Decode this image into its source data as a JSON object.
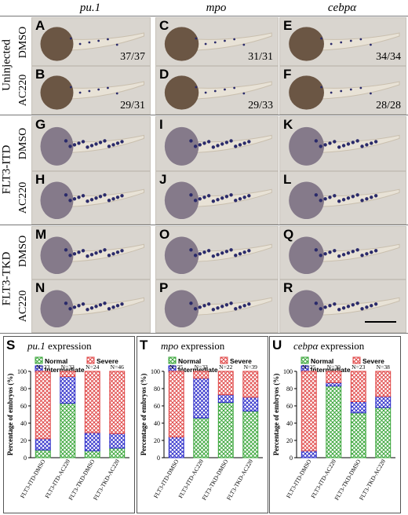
{
  "columns": [
    "pu.1",
    "mpo",
    "cebpα"
  ],
  "groups": [
    {
      "name": "Uninjected",
      "rows": [
        "DMSO",
        "AC220"
      ]
    },
    {
      "name": "FLT3-ITD",
      "rows": [
        "DMSO",
        "AC220"
      ]
    },
    {
      "name": "FLT3-TKD",
      "rows": [
        "DMSO",
        "AC220"
      ]
    }
  ],
  "panels": [
    {
      "letter": "A",
      "count": "37/37"
    },
    {
      "letter": "C",
      "count": "31/31"
    },
    {
      "letter": "E",
      "count": "34/34"
    },
    {
      "letter": "B",
      "count": "29/31"
    },
    {
      "letter": "D",
      "count": "29/33"
    },
    {
      "letter": "F",
      "count": "28/28"
    },
    {
      "letter": "G",
      "count": ""
    },
    {
      "letter": "I",
      "count": ""
    },
    {
      "letter": "K",
      "count": ""
    },
    {
      "letter": "H",
      "count": ""
    },
    {
      "letter": "J",
      "count": ""
    },
    {
      "letter": "L",
      "count": ""
    },
    {
      "letter": "M",
      "count": ""
    },
    {
      "letter": "O",
      "count": ""
    },
    {
      "letter": "Q",
      "count": ""
    },
    {
      "letter": "N",
      "count": ""
    },
    {
      "letter": "P",
      "count": ""
    },
    {
      "letter": "R",
      "count": ""
    }
  ],
  "colors": {
    "normal": "#3aa63a",
    "intermediate": "#2a2ac8",
    "severe": "#e04848"
  },
  "chart_data": [
    {
      "type": "bar",
      "letter": "S",
      "title_gene": "pu.1",
      "title_rest": " expression",
      "ylabel": "Percentage of embryos (%)",
      "ylim": [
        0,
        100
      ],
      "yticks": [
        "0",
        "20",
        "40",
        "60",
        "80",
        "100"
      ],
      "legend": [
        "Normal",
        "Severe",
        "Intermediate"
      ],
      "categories": [
        "FLT3-ITD-DMSO",
        "FLT3-ITD-AC220",
        "FLT3-TKD-DMSO",
        "FLT3-TKD-AC220"
      ],
      "n_labels": [
        "N=23",
        "N=32",
        "N=24",
        "N=46"
      ],
      "series": [
        {
          "name": "Normal",
          "values": [
            9,
            63,
            8,
            11
          ]
        },
        {
          "name": "Intermediate",
          "values": [
            13,
            31,
            21,
            17
          ]
        },
        {
          "name": "Severe",
          "values": [
            78,
            6,
            71,
            72
          ]
        }
      ]
    },
    {
      "type": "bar",
      "letter": "T",
      "title_gene": "mpo",
      "title_rest": " expression",
      "ylabel": "Percentage of embryos (%)",
      "ylim": [
        0,
        100
      ],
      "yticks": [
        "0",
        "20",
        "40",
        "60",
        "80",
        "100"
      ],
      "legend": [
        "Normal",
        "Severe",
        "Intermediate"
      ],
      "categories": [
        "FLT3-ITD-DMSO",
        "FLT3-ITD-AC220",
        "FLT3-TKD-DMSO",
        "FLT3-TKD-AC220"
      ],
      "n_labels": [
        "N=25",
        "N=33",
        "N=22",
        "N=39"
      ],
      "series": [
        {
          "name": "Normal",
          "values": [
            0,
            46,
            64,
            54
          ]
        },
        {
          "name": "Intermediate",
          "values": [
            24,
            46,
            9,
            16
          ]
        },
        {
          "name": "Severe",
          "values": [
            76,
            8,
            27,
            30
          ]
        }
      ]
    },
    {
      "type": "bar",
      "letter": "U",
      "title_gene": "cebpα",
      "title_rest": " expression",
      "ylabel": "Percentage of embryos (%)",
      "ylim": [
        0,
        100
      ],
      "yticks": [
        "0",
        "20",
        "40",
        "60",
        "80",
        "100"
      ],
      "legend": [
        "Normal",
        "Severe",
        "Intermediate"
      ],
      "categories": [
        "FLT3-ITD-DMSO",
        "FLT3-ITD-AC220",
        "FLT3-TKD-DMSO",
        "FLT3-TKD-AC220"
      ],
      "n_labels": [
        "N=25",
        "N=30",
        "N=23",
        "N=38"
      ],
      "series": [
        {
          "name": "Normal",
          "values": [
            0,
            83,
            52,
            58
          ]
        },
        {
          "name": "Intermediate",
          "values": [
            8,
            4,
            13,
            13
          ]
        },
        {
          "name": "Severe",
          "values": [
            92,
            13,
            35,
            29
          ]
        }
      ]
    }
  ]
}
